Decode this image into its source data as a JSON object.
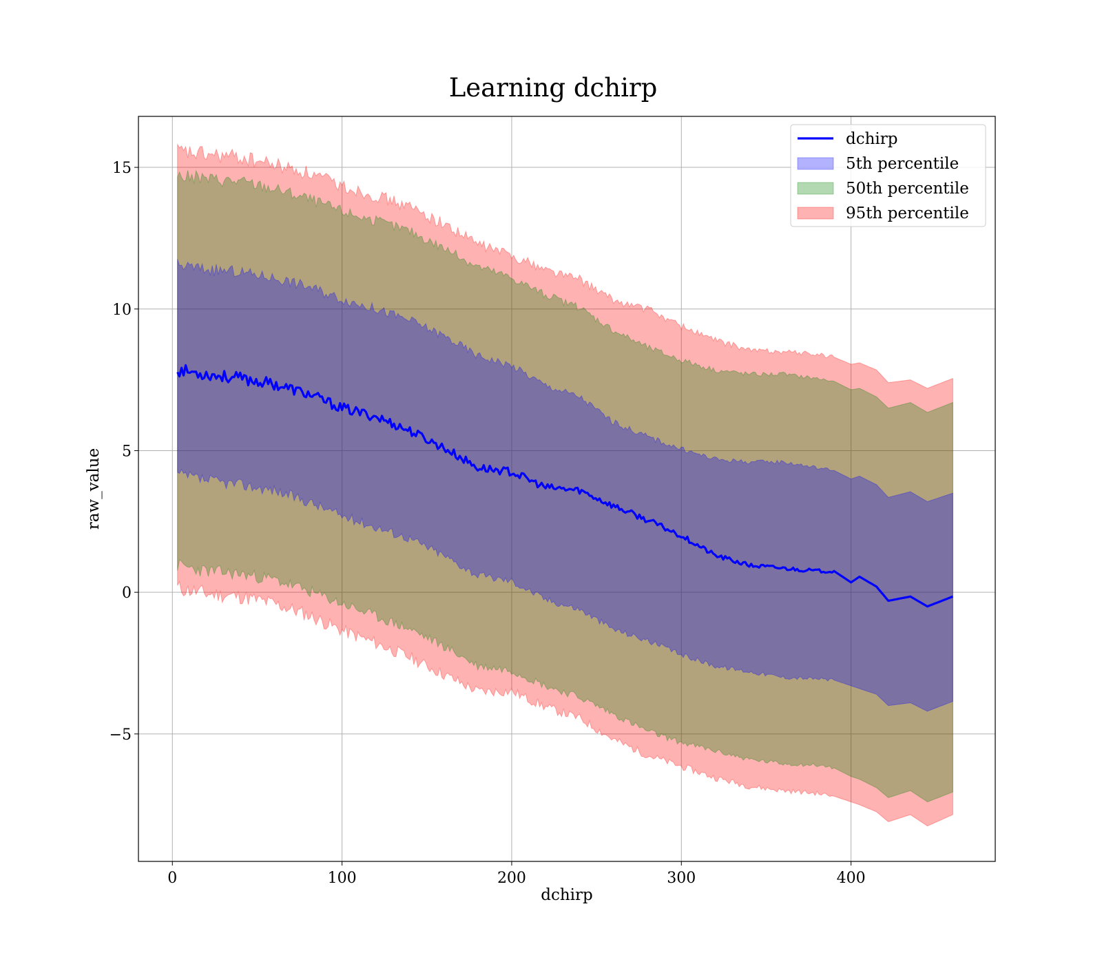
{
  "chart_data": {
    "type": "line",
    "title": "Learning dchirp",
    "xlabel": "dchirp",
    "ylabel": "raw_value",
    "xlim": [
      -20,
      485
    ],
    "ylim": [
      -9.5,
      16.8
    ],
    "grid": true,
    "legend_placement": "top-right",
    "x_ticks": [
      {
        "value": 0,
        "label": "0"
      },
      {
        "value": 100,
        "label": "100"
      },
      {
        "value": 200,
        "label": "200"
      },
      {
        "value": 300,
        "label": "300"
      },
      {
        "value": 400,
        "label": "400"
      }
    ],
    "y_ticks": [
      {
        "value": 15,
        "label": "15"
      },
      {
        "value": 10,
        "label": "10"
      },
      {
        "value": 5,
        "label": "5"
      },
      {
        "value": 0,
        "label": "0"
      },
      {
        "value": -5,
        "label": "−5"
      }
    ],
    "x": [
      3,
      20,
      40,
      60,
      80,
      100,
      120,
      140,
      160,
      180,
      200,
      220,
      240,
      260,
      280,
      300,
      320,
      340,
      360,
      380,
      390,
      400,
      405,
      415,
      422,
      435,
      445,
      460
    ],
    "series": [
      {
        "name": "dchirp",
        "kind": "line",
        "color": "#0000ff",
        "values": [
          7.85,
          7.7,
          7.55,
          7.35,
          7.0,
          6.5,
          6.2,
          5.7,
          5.1,
          4.4,
          4.25,
          3.7,
          3.6,
          3.05,
          2.55,
          2.0,
          1.3,
          0.95,
          0.85,
          0.75,
          0.75,
          0.35,
          0.55,
          0.2,
          -0.3,
          -0.15,
          -0.5,
          -0.15
        ]
      },
      {
        "name": "5th percentile",
        "kind": "band",
        "color": "#0000ff",
        "lower": [
          4.15,
          3.95,
          3.8,
          3.6,
          3.2,
          2.7,
          2.3,
          1.9,
          1.3,
          0.6,
          0.4,
          -0.25,
          -0.6,
          -1.3,
          -1.7,
          -2.2,
          -2.6,
          -2.8,
          -3.0,
          -3.05,
          -3.1,
          -3.3,
          -3.4,
          -3.6,
          -4.0,
          -3.9,
          -4.2,
          -3.85
        ],
        "upper": [
          11.55,
          11.4,
          11.3,
          11.1,
          10.8,
          10.35,
          10.0,
          9.6,
          9.05,
          8.35,
          8.0,
          7.3,
          6.9,
          6.0,
          5.5,
          5.05,
          4.7,
          4.6,
          4.6,
          4.4,
          4.3,
          4.0,
          4.1,
          3.8,
          3.35,
          3.55,
          3.2,
          3.5
        ]
      },
      {
        "name": "50th percentile",
        "kind": "band",
        "color": "#008000",
        "lower": [
          0.95,
          0.75,
          0.65,
          0.45,
          0.05,
          -0.4,
          -0.85,
          -1.3,
          -1.9,
          -2.6,
          -2.75,
          -3.3,
          -3.7,
          -4.3,
          -4.9,
          -5.3,
          -5.6,
          -5.9,
          -6.05,
          -6.1,
          -6.2,
          -6.5,
          -6.6,
          -6.9,
          -7.25,
          -7.0,
          -7.4,
          -7.05
        ],
        "upper": [
          14.7,
          14.6,
          14.5,
          14.25,
          13.9,
          13.45,
          13.1,
          12.75,
          12.15,
          11.5,
          11.1,
          10.5,
          10.05,
          9.25,
          8.65,
          8.2,
          7.85,
          7.7,
          7.7,
          7.55,
          7.45,
          7.15,
          7.2,
          6.9,
          6.5,
          6.7,
          6.35,
          6.7
        ]
      },
      {
        "name": "95th percentile",
        "kind": "band",
        "color": "#ff0000",
        "lower": [
          0.15,
          -0.05,
          -0.15,
          -0.4,
          -0.8,
          -1.35,
          -1.8,
          -2.3,
          -2.9,
          -3.5,
          -3.5,
          -4.05,
          -4.45,
          -5.2,
          -5.75,
          -6.15,
          -6.55,
          -6.85,
          -7.0,
          -7.1,
          -7.2,
          -7.4,
          -7.5,
          -7.75,
          -8.1,
          -7.85,
          -8.25,
          -7.85
        ]
      },
      {
        "name": "95th percentile upper",
        "kind": "band-edge",
        "upper": [
          15.55,
          15.45,
          15.35,
          15.1,
          14.8,
          14.35,
          14.0,
          13.6,
          13.0,
          12.3,
          11.9,
          11.4,
          11.05,
          10.3,
          10.0,
          9.4,
          8.9,
          8.55,
          8.5,
          8.4,
          8.3,
          8.05,
          8.1,
          7.85,
          7.4,
          7.5,
          7.2,
          7.55
        ]
      }
    ],
    "legend": [
      {
        "label": "dchirp",
        "kind": "line",
        "color": "#0000ff"
      },
      {
        "label": "5th percentile",
        "kind": "patch",
        "color": "#0000ff"
      },
      {
        "label": "50th percentile",
        "kind": "patch",
        "color": "#008000"
      },
      {
        "label": "95th percentile",
        "kind": "patch",
        "color": "#ff0000"
      }
    ]
  }
}
